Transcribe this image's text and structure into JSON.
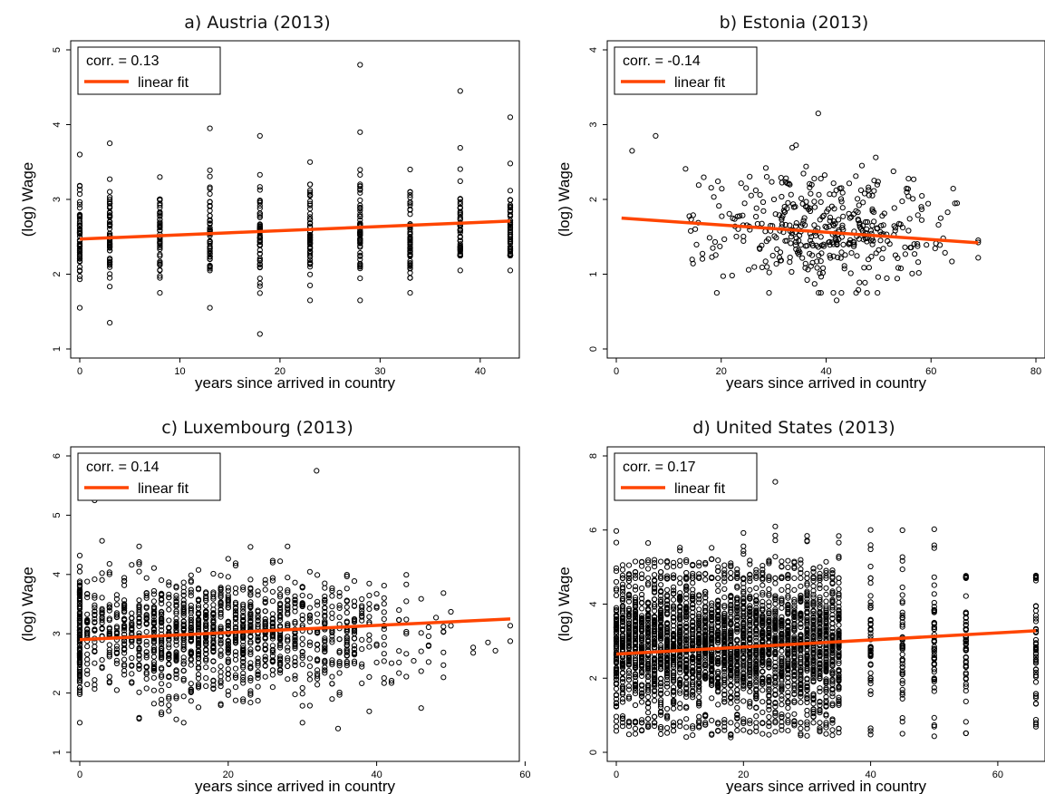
{
  "colors": {
    "points": "#000000",
    "fit_line": "#ff4500",
    "axis": "#000000"
  },
  "chart_data": [
    {
      "type": "scatter",
      "title": "a) Austria (2013)",
      "xlabel": "years since arrived in country",
      "ylabel": "(log) Wage",
      "xlim": [
        0,
        43
      ],
      "ylim": [
        1,
        5
      ],
      "xticks": [
        "0",
        "10",
        "20",
        "30",
        "40"
      ],
      "yticks": [
        "1",
        "2",
        "3",
        "4",
        "5"
      ],
      "legend": {
        "corr_label": "corr. = 0.13",
        "fit_label": "linear fit",
        "placement": "top-left"
      },
      "fit": {
        "x": [
          0,
          43
        ],
        "y": [
          2.47,
          2.71
        ]
      },
      "x_groups": [
        0,
        3,
        8,
        13,
        18,
        23,
        28,
        33,
        38,
        43
      ],
      "group_ranges": [
        [
          1.55,
          3.6
        ],
        [
          1.35,
          3.75
        ],
        [
          1.75,
          3.3
        ],
        [
          1.55,
          3.95
        ],
        [
          1.2,
          3.85
        ],
        [
          1.65,
          3.5
        ],
        [
          1.65,
          4.8
        ],
        [
          1.75,
          3.4
        ],
        [
          2.05,
          4.45
        ],
        [
          2.05,
          4.1
        ]
      ],
      "point_density": "medium"
    },
    {
      "type": "scatter",
      "title": "b) Estonia (2013)",
      "xlabel": "years since arrived in country",
      "ylabel": "(log) Wage",
      "xlim": [
        0,
        80
      ],
      "ylim": [
        0,
        4
      ],
      "xticks": [
        "0",
        "20",
        "40",
        "60",
        "80"
      ],
      "yticks": [
        "0",
        "1",
        "2",
        "3",
        "4"
      ],
      "legend": {
        "corr_label": "corr. = -0.14",
        "fit_label": "linear fit",
        "placement": "top-left"
      },
      "fit": {
        "x": [
          1,
          69
        ],
        "y": [
          1.75,
          1.42
        ]
      },
      "x_range": [
        1,
        69
      ],
      "y_range": [
        0.65,
        3.15
      ],
      "cluster": {
        "x_center": 40,
        "x_sd": 11,
        "y_center": 1.6,
        "y_sd": 0.4
      },
      "point_count": 420
    },
    {
      "type": "scatter",
      "title": "c) Luxembourg (2013)",
      "xlabel": "years since arrived in country",
      "ylabel": "(log) Wage",
      "xlim": [
        0,
        58
      ],
      "ylim": [
        1,
        6
      ],
      "xticks": [
        "0",
        "20",
        "40",
        "60"
      ],
      "yticks": [
        "1",
        "2",
        "3",
        "4",
        "5",
        "6"
      ],
      "legend": {
        "corr_label": "corr. = 0.14",
        "fit_label": "linear fit",
        "placement": "top-left"
      },
      "fit": {
        "x": [
          0,
          58
        ],
        "y": [
          2.9,
          3.25
        ]
      },
      "x_range": [
        0,
        58
      ],
      "y_range": [
        1.4,
        5.75
      ],
      "cluster": {
        "x_center": 18,
        "x_sd": 13,
        "y_center": 3.0,
        "y_sd": 0.5
      },
      "point_count": 1500
    },
    {
      "type": "scatter",
      "title": "d) United States (2013)",
      "xlabel": "years since arrived in country",
      "ylabel": "(log) Wage",
      "xlim": [
        0,
        66
      ],
      "ylim": [
        0,
        8
      ],
      "xticks": [
        "0",
        "20",
        "40",
        "60"
      ],
      "yticks": [
        "0",
        "2",
        "4",
        "6",
        "8"
      ],
      "legend": {
        "corr_label": "corr. = 0.17",
        "fit_label": "linear fit",
        "placement": "top-left"
      },
      "fit": {
        "x": [
          0,
          66
        ],
        "y": [
          2.65,
          3.28
        ]
      },
      "x_groups": [
        0,
        1,
        2,
        3,
        4,
        5,
        6,
        7,
        8,
        9,
        10,
        11,
        12,
        13,
        14,
        15,
        16,
        17,
        18,
        19,
        20,
        21,
        22,
        23,
        24,
        25,
        26,
        27,
        28,
        29,
        30,
        31,
        32,
        33,
        34,
        35,
        40,
        45,
        50,
        55,
        66
      ],
      "group_range": [
        0.0,
        6.3
      ],
      "outliers": [
        [
          25,
          7.3
        ]
      ],
      "point_density": "high"
    }
  ]
}
